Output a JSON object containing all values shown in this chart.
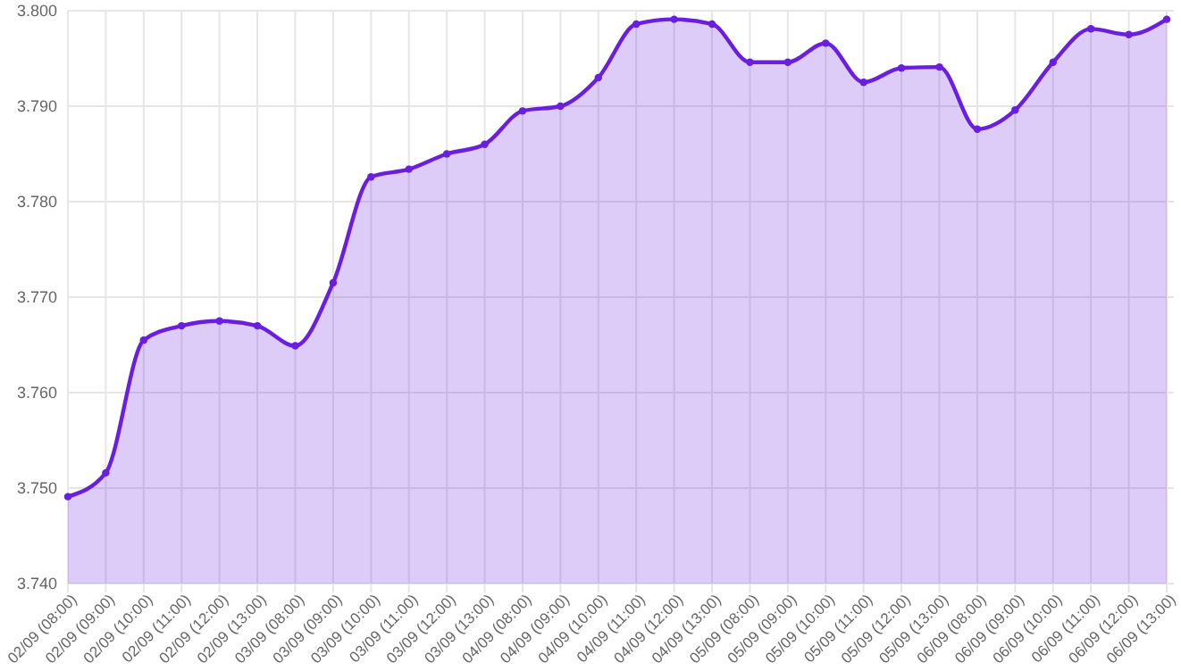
{
  "chart_data": {
    "type": "area",
    "categories": [
      "02/09 (08:00)",
      "02/09 (09:00)",
      "02/09 (10:00)",
      "02/09 (11:00)",
      "02/09 (12:00)",
      "02/09 (13:00)",
      "03/09 (08:00)",
      "03/09 (09:00)",
      "03/09 (10:00)",
      "03/09 (11:00)",
      "03/09 (12:00)",
      "03/09 (13:00)",
      "04/09 (08:00)",
      "04/09 (09:00)",
      "04/09 (10:00)",
      "04/09 (11:00)",
      "04/09 (12:00)",
      "04/09 (13:00)",
      "05/09 (08:00)",
      "05/09 (09:00)",
      "05/09 (10:00)",
      "05/09 (11:00)",
      "05/09 (12:00)",
      "05/09 (13:00)",
      "06/09 (08:00)",
      "06/09 (09:00)",
      "06/09 (10:00)",
      "06/09 (11:00)",
      "06/09 (12:00)",
      "06/09 (13:00)"
    ],
    "series": [
      {
        "color": "#6a1ee0",
        "values": [
          3.7491,
          3.7516,
          3.7655,
          3.767,
          3.7675,
          3.767,
          3.7649,
          3.7715,
          3.7826,
          3.7834,
          3.785,
          3.786,
          3.7895,
          3.79,
          3.793,
          3.7986,
          3.7991,
          3.7986,
          3.7946,
          3.7946,
          3.7966,
          3.7925,
          3.794,
          3.7941,
          3.7876,
          3.7896,
          3.7946,
          3.7981,
          3.7975,
          3.7991
        ]
      }
    ],
    "ylim": [
      3.74,
      3.8
    ],
    "yticks": [
      {
        "value": 3.74,
        "label": "3.740"
      },
      {
        "value": 3.75,
        "label": "3.750"
      },
      {
        "value": 3.76,
        "label": "3.760"
      },
      {
        "value": 3.77,
        "label": "3.770"
      },
      {
        "value": 3.78,
        "label": "3.780"
      },
      {
        "value": 3.79,
        "label": "3.790"
      },
      {
        "value": 3.8,
        "label": "3.800"
      }
    ],
    "grid": true,
    "marker": "circle",
    "line_style": "solid"
  }
}
